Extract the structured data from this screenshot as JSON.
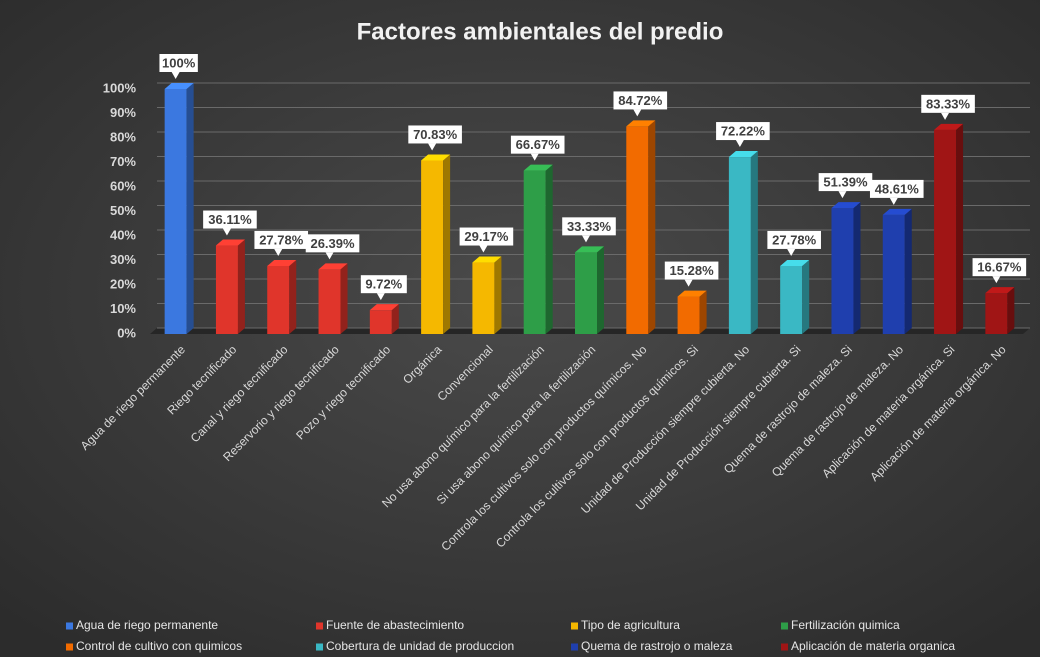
{
  "chart_data": {
    "type": "bar3d",
    "title": "Factores ambientales del predio",
    "categories": [
      "Agua de riego permanente",
      "Riego tecnificado",
      "Canal y riego tecnificado",
      "Reservorio y riego tecnificado",
      "Pozo y riego tecnificado",
      "Orgánica",
      "Convencional",
      "No usa abono químico para la fertilización",
      "Si usa abono químico para la fertilización",
      "Controla los cultivos solo con productos químicos. No",
      "Controla los cultivos solo con productos químicos. Si",
      "Unidad de Producción siempre cubierta. No",
      "Unidad de Producción siempre cubierta. Si",
      "Quema de rastrojo de maleza. Si",
      "Quema de rastrojo de maleza. No",
      "Aplicación de materia orgánica. Si",
      "Aplicación de materia orgánica. No"
    ],
    "series": [
      {
        "name": "Agua de riego permanente",
        "color": "#3b78e0",
        "values": [
          100,
          null,
          null,
          null,
          null,
          null,
          null,
          null,
          null,
          null,
          null,
          null,
          null,
          null,
          null,
          null,
          null
        ],
        "value_labels": [
          "100%",
          null,
          null,
          null,
          null,
          null,
          null,
          null,
          null,
          null,
          null,
          null,
          null,
          null,
          null,
          null,
          null
        ]
      },
      {
        "name": "Fuente de abastecimiento",
        "color": "#e0352b",
        "values": [
          null,
          36.11,
          27.78,
          26.39,
          9.72,
          null,
          null,
          null,
          null,
          null,
          null,
          null,
          null,
          null,
          null,
          null,
          null
        ],
        "value_labels": [
          null,
          "36.11%",
          "27.78%",
          "26.39%",
          "9.72%",
          null,
          null,
          null,
          null,
          null,
          null,
          null,
          null,
          null,
          null,
          null,
          null
        ]
      },
      {
        "name": "Tipo de agricultura",
        "color": "#f5b800",
        "values": [
          null,
          null,
          null,
          null,
          null,
          70.83,
          29.17,
          null,
          null,
          null,
          null,
          null,
          null,
          null,
          null,
          null,
          null
        ],
        "value_labels": [
          null,
          null,
          null,
          null,
          null,
          "70.83%",
          "29.17%",
          null,
          null,
          null,
          null,
          null,
          null,
          null,
          null,
          null,
          null
        ]
      },
      {
        "name": "Fertilización quimica",
        "color": "#2e9e48",
        "values": [
          null,
          null,
          null,
          null,
          null,
          null,
          null,
          66.67,
          33.33,
          null,
          null,
          null,
          null,
          null,
          null,
          null,
          null
        ],
        "value_labels": [
          null,
          null,
          null,
          null,
          null,
          null,
          null,
          "66.67%",
          "33.33%",
          null,
          null,
          null,
          null,
          null,
          null,
          null,
          null
        ]
      },
      {
        "name": "Control de cultivo con quimicos",
        "color": "#f26b00",
        "values": [
          null,
          null,
          null,
          null,
          null,
          null,
          null,
          null,
          null,
          84.72,
          15.28,
          null,
          null,
          null,
          null,
          null,
          null
        ],
        "value_labels": [
          null,
          null,
          null,
          null,
          null,
          null,
          null,
          null,
          null,
          "84.72%",
          "15.28%",
          null,
          null,
          null,
          null,
          null,
          null
        ]
      },
      {
        "name": "Cobertura de unidad de produccion",
        "color": "#3ab8c4",
        "values": [
          null,
          null,
          null,
          null,
          null,
          null,
          null,
          null,
          null,
          null,
          null,
          72.22,
          27.78,
          null,
          null,
          null,
          null
        ],
        "value_labels": [
          null,
          null,
          null,
          null,
          null,
          null,
          null,
          null,
          null,
          null,
          null,
          "72.22%",
          "27.78%",
          null,
          null,
          null,
          null
        ]
      },
      {
        "name": "Quema de rastrojo o maleza",
        "color": "#1f3fae",
        "values": [
          null,
          null,
          null,
          null,
          null,
          null,
          null,
          null,
          null,
          null,
          null,
          null,
          null,
          51.39,
          48.61,
          null,
          null
        ],
        "value_labels": [
          null,
          null,
          null,
          null,
          null,
          null,
          null,
          null,
          null,
          null,
          null,
          null,
          null,
          "51.39%",
          "48.61%",
          null,
          null
        ]
      },
      {
        "name": "Aplicación de materia organica",
        "color": "#a01515",
        "values": [
          null,
          null,
          null,
          null,
          null,
          null,
          null,
          null,
          null,
          null,
          null,
          null,
          null,
          null,
          null,
          83.33,
          16.67
        ],
        "value_labels": [
          null,
          null,
          null,
          null,
          null,
          null,
          null,
          null,
          null,
          null,
          null,
          null,
          null,
          null,
          null,
          "83.33%",
          "16.67%"
        ]
      }
    ],
    "ylim": [
      0,
      100
    ],
    "yticks": [
      {
        "value": 0,
        "label": "0%"
      },
      {
        "value": 10,
        "label": "10%"
      },
      {
        "value": 20,
        "label": "20%"
      },
      {
        "value": 30,
        "label": "30%"
      },
      {
        "value": 40,
        "label": "40%"
      },
      {
        "value": 50,
        "label": "50%"
      },
      {
        "value": 60,
        "label": "60%"
      },
      {
        "value": 70,
        "label": "70%"
      },
      {
        "value": 80,
        "label": "80%"
      },
      {
        "value": 90,
        "label": "90%"
      },
      {
        "value": 100,
        "label": "100%"
      }
    ],
    "grid": true,
    "legend": "bottom"
  }
}
